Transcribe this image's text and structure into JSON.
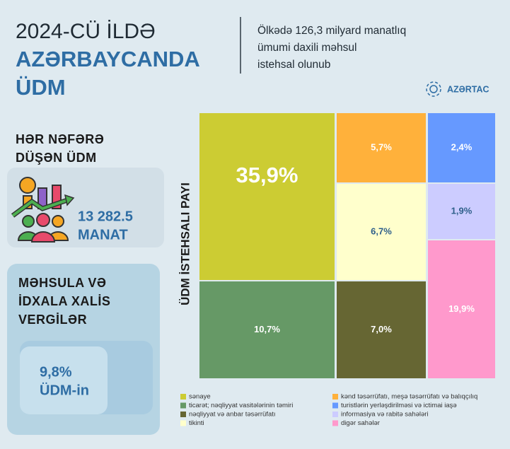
{
  "header": {
    "title_lines": [
      "2024-CÜ İLDƏ",
      "AZƏRBAYCANDA",
      "ÜDM"
    ],
    "subtitle_lines": [
      "Ölkədə 126,3 milyard manatlıq",
      "ümumi daxili məhsul",
      "istehsal olunub"
    ],
    "logo": "AZƏRTAC"
  },
  "per_capita": {
    "title_lines": [
      "HƏR NƏFƏRƏ",
      "DÜŞƏN ÜDM"
    ],
    "value_lines": [
      "13 282.5",
      "MANAT"
    ]
  },
  "taxes": {
    "title_lines": [
      "MƏHSULA VƏ",
      "İDXALA XALİS",
      "VERGİLƏR"
    ],
    "value_lines": [
      "9,8%",
      "ÜDM-in"
    ]
  },
  "chart_data": {
    "type": "treemap",
    "ylabel": "ÜDM İSTEHSALI PAYI",
    "categories": [
      "sənaye",
      "ticarət; nəqliyyat vasitələrinin təmiri",
      "nəqliyyat və anbar təsərrüfatı",
      "tikinti",
      "kənd təsərrüfatı, meşə təsərrüfatı və balıqçılıq",
      "turistlərin yerləşdirilməsi və ictimai iaşə",
      "informasiya və rabitə sahələri",
      "digər sahələr"
    ],
    "values": [
      35.9,
      10.7,
      7.0,
      6.7,
      5.7,
      2.4,
      1.9,
      19.9
    ],
    "value_labels": [
      "35,9%",
      "10,7%",
      "7,0%",
      "6,7%",
      "5,7%",
      "2,4%",
      "1,9%",
      "19,9%"
    ],
    "colors": [
      "#cccc33",
      "#669966",
      "#666633",
      "#ffffcc",
      "#ffb13b",
      "#6699ff",
      "#ccccff",
      "#ff99cc"
    ]
  }
}
